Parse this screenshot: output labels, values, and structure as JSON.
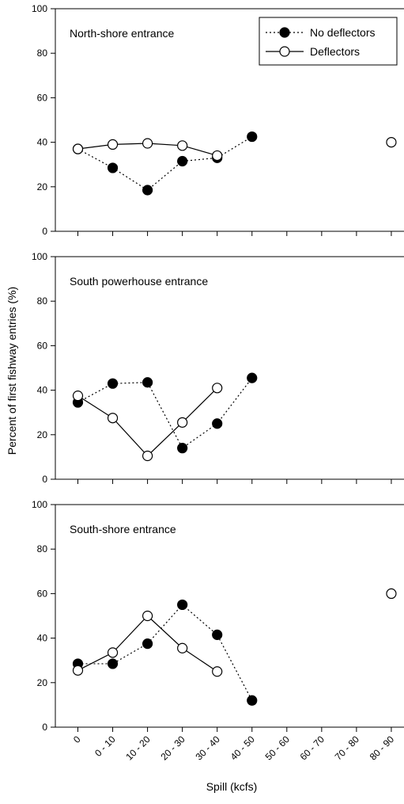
{
  "chart_data": {
    "type": "line",
    "categories": [
      "0",
      "0 - 10",
      "10 - 20",
      "20 - 30",
      "30 - 40",
      "40 - 50",
      "50 - 60",
      "60 - 70",
      "70 - 80",
      "80 - 90"
    ],
    "xlabel": "Spill (kcfs)",
    "ylabel": "Percent of first fishway entries (%)",
    "ylim": [
      0,
      100
    ],
    "yticks": [
      0,
      20,
      40,
      60,
      80,
      100
    ],
    "grid": false,
    "legend": {
      "placement": "top-right",
      "entries": [
        {
          "name": "No deflectors",
          "marker": "filled-circle",
          "line": "dotted"
        },
        {
          "name": "Deflectors",
          "marker": "open-circle",
          "line": "solid"
        }
      ]
    },
    "panels": [
      {
        "title": "North-shore entrance",
        "series": [
          {
            "name": "No deflectors",
            "values": [
              37,
              28.5,
              18.5,
              31.5,
              33,
              42.5,
              null,
              null,
              null,
              null
            ]
          },
          {
            "name": "Deflectors",
            "values": [
              37,
              39,
              39.5,
              38.5,
              34,
              null,
              null,
              null,
              null,
              40
            ]
          }
        ]
      },
      {
        "title": "South powerhouse entrance",
        "series": [
          {
            "name": "No deflectors",
            "values": [
              34.5,
              43,
              43.5,
              14,
              25,
              45.5,
              null,
              null,
              null,
              null
            ]
          },
          {
            "name": "Deflectors",
            "values": [
              37.5,
              27.5,
              10.5,
              25.5,
              41,
              null,
              null,
              null,
              null,
              null
            ]
          }
        ]
      },
      {
        "title": "South-shore entrance",
        "series": [
          {
            "name": "No deflectors",
            "values": [
              28.5,
              28.5,
              37.5,
              55,
              41.5,
              12,
              null,
              null,
              null,
              null
            ]
          },
          {
            "name": "Deflectors",
            "values": [
              25.5,
              33.5,
              50,
              35.5,
              25,
              null,
              null,
              null,
              null,
              60
            ]
          }
        ]
      }
    ]
  }
}
